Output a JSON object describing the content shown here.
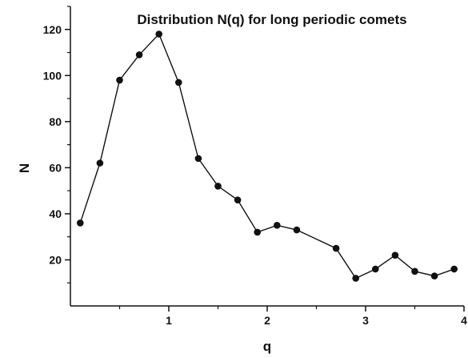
{
  "chart_data": {
    "type": "line",
    "title": "Distribution N(q) for long periodic comets",
    "xlabel": "q",
    "ylabel": "N",
    "xlim": [
      0.0,
      4.0
    ],
    "ylim": [
      0,
      130
    ],
    "x_ticks": [
      1,
      2,
      3,
      4
    ],
    "y_ticks": [
      20,
      40,
      60,
      80,
      100,
      120
    ],
    "grid": false,
    "markers": "filled-circle",
    "colors": {
      "line": "#111111",
      "marker": "#111111",
      "axis": "#111111"
    },
    "series": [
      {
        "x": [
          0.1,
          0.3,
          0.5,
          0.7,
          0.9,
          1.1,
          1.3,
          1.5,
          1.7,
          1.9,
          2.1,
          2.3,
          2.7,
          2.9,
          3.1,
          3.3,
          3.5,
          3.7,
          3.9
        ],
        "y": [
          36,
          62,
          98,
          109,
          118,
          97,
          64,
          52,
          46,
          32,
          35,
          33,
          25,
          12,
          16,
          22,
          15,
          13,
          16
        ]
      }
    ]
  }
}
